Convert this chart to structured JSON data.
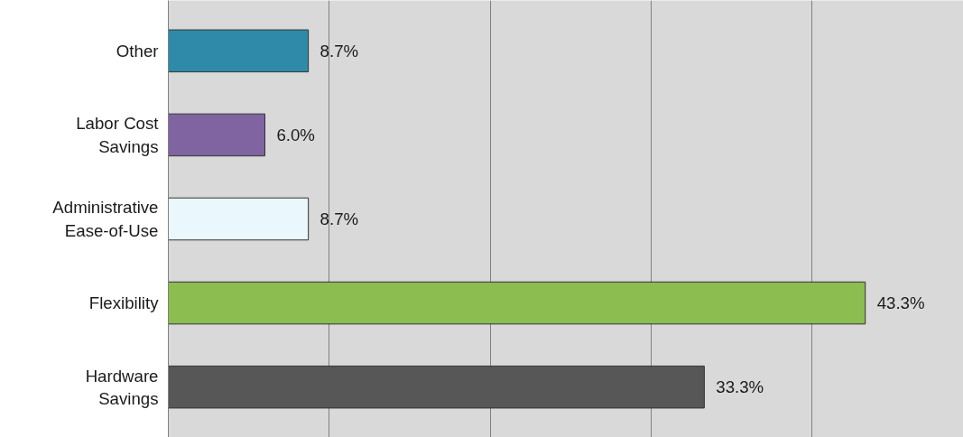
{
  "chart_data": {
    "type": "bar",
    "orientation": "horizontal",
    "categories": [
      "Other",
      "Labor Cost Savings",
      "Administrative Ease-of-Use",
      "Flexibility",
      "Hardware Savings"
    ],
    "values": [
      8.7,
      6.0,
      8.7,
      43.3,
      33.3
    ],
    "colors": [
      "#2e8aa8",
      "#8064a2",
      "#eaf8fe",
      "#8bbd50",
      "#575757"
    ],
    "value_labels": [
      "8.7%",
      "6.0%",
      "8.7%",
      "43.3%",
      "33.3%"
    ],
    "xlim": [
      0,
      49.4
    ],
    "xticks": [
      {
        "value": 0,
        "label": null
      },
      {
        "value": 10,
        "label": null
      },
      {
        "value": 20,
        "label": null
      },
      {
        "value": 30,
        "label": null
      },
      {
        "value": 40,
        "label": null
      }
    ],
    "tick_labels": "y",
    "grid": "x"
  }
}
